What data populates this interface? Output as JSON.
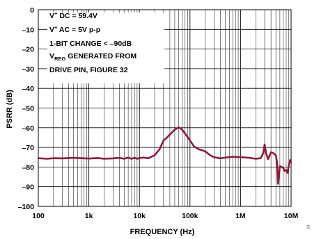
{
  "chart_data": {
    "type": "line",
    "xlabel": "FREQUENCY (Hz)",
    "ylabel": "PSRR (dB)",
    "x_scale": "log",
    "xlim": [
      100,
      10000000
    ],
    "ylim": [
      -100,
      0
    ],
    "grid": true,
    "x_ticks": [
      {
        "value": 100,
        "label": "100"
      },
      {
        "value": 1000,
        "label": "1k"
      },
      {
        "value": 10000,
        "label": "10k"
      },
      {
        "value": 100000,
        "label": "100k"
      },
      {
        "value": 1000000,
        "label": "1M"
      },
      {
        "value": 10000000,
        "label": "10M"
      }
    ],
    "y_ticks": [
      {
        "value": 0,
        "label": "0"
      },
      {
        "value": -10,
        "label": "–10"
      },
      {
        "value": -20,
        "label": "–20"
      },
      {
        "value": -30,
        "label": "–30"
      },
      {
        "value": -40,
        "label": "–40"
      },
      {
        "value": -50,
        "label": "–50"
      },
      {
        "value": -60,
        "label": "–60"
      },
      {
        "value": -70,
        "label": "–70"
      },
      {
        "value": -80,
        "label": "–80"
      },
      {
        "value": -90,
        "label": "–90"
      },
      {
        "value": -100,
        "label": "–100"
      }
    ],
    "annotations": [
      {
        "main": "V",
        "sup": "+",
        "rest": " DC = 59.4V"
      },
      {
        "main": "V",
        "sup": "+",
        "rest": " AC = 5V p-p"
      },
      {
        "main": "1-BIT CHANGE < –90dB"
      },
      {
        "main": "V",
        "sub": "REG",
        "rest": " GENERATED FROM"
      },
      {
        "main": "DRIVE PIN, FIGURE 32"
      }
    ],
    "line_color": "#8b1c3a",
    "series": [
      {
        "x": [
          100,
          150,
          200,
          300,
          500,
          700,
          1000,
          1500,
          2000,
          3000,
          4000,
          5000,
          6000,
          7000,
          8000,
          9000,
          10000,
          12000,
          15000,
          20000,
          25000,
          30000,
          35000,
          40000,
          50000,
          60000,
          70000,
          80000,
          100000,
          120000,
          150000,
          200000,
          250000,
          300000,
          400000,
          500000,
          700000,
          1000000,
          1500000,
          2000000,
          2500000,
          2800000,
          3000000,
          3200000,
          3500000,
          4000000,
          4500000,
          5000000,
          5300000,
          5500000,
          6000000,
          6500000,
          7000000,
          7500000,
          8000000,
          8500000,
          9000000,
          9500000,
          10000000
        ],
        "y": [
          -75.5,
          -75.8,
          -75.5,
          -75.6,
          -75.3,
          -75.5,
          -75.7,
          -75.4,
          -75.8,
          -75.6,
          -75.3,
          -75.8,
          -75.2,
          -75.8,
          -75.3,
          -75.8,
          -75.4,
          -75.2,
          -75.5,
          -74.0,
          -71.0,
          -66.5,
          -65.0,
          -63.5,
          -61.0,
          -59.8,
          -61.0,
          -63.0,
          -66.5,
          -69.5,
          -71.0,
          -72.0,
          -74.0,
          -75.0,
          -75.6,
          -75.2,
          -74.8,
          -75.0,
          -75.3,
          -75.8,
          -75.5,
          -73.0,
          -68.5,
          -73.0,
          -76.0,
          -72.5,
          -73.0,
          -74.0,
          -78.0,
          -88.5,
          -79.5,
          -80.0,
          -80.5,
          -82.0,
          -81.5,
          -83.0,
          -79.0,
          -76.5,
          -77.5
        ]
      }
    ]
  },
  "side_label": "04"
}
